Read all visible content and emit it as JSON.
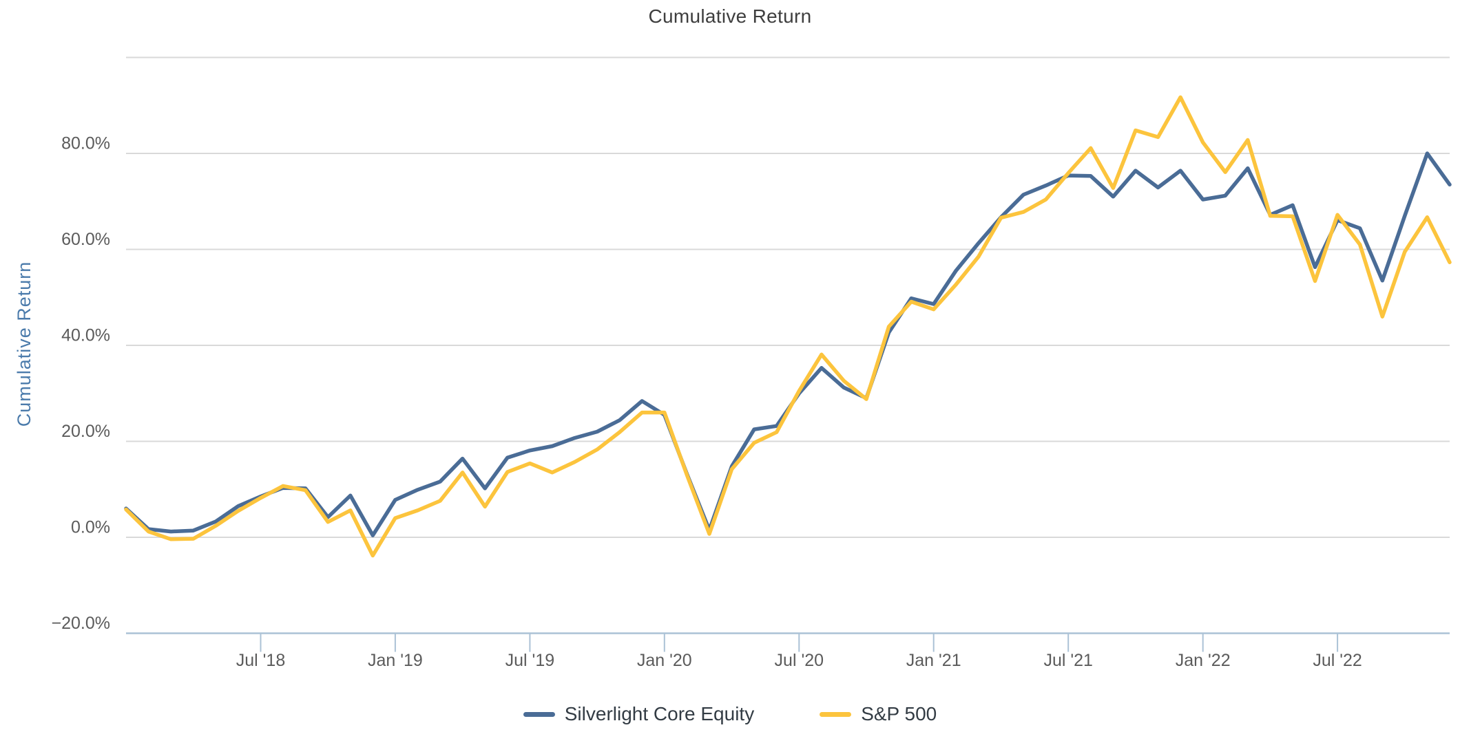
{
  "chart_data": {
    "type": "line",
    "title": "Cumulative Return",
    "ylabel": "Cumulative Return",
    "grid": true,
    "legend_position": "bottom",
    "x_months": [
      "2018-01",
      "2018-02",
      "2018-03",
      "2018-04",
      "2018-05",
      "2018-06",
      "2018-07",
      "2018-08",
      "2018-09",
      "2018-10",
      "2018-11",
      "2018-12",
      "2019-01",
      "2019-02",
      "2019-03",
      "2019-04",
      "2019-05",
      "2019-06",
      "2019-07",
      "2019-08",
      "2019-09",
      "2019-10",
      "2019-11",
      "2019-12",
      "2020-01",
      "2020-02",
      "2020-03",
      "2020-04",
      "2020-05",
      "2020-06",
      "2020-07",
      "2020-08",
      "2020-09",
      "2020-10",
      "2020-11",
      "2020-12",
      "2021-01",
      "2021-02",
      "2021-03",
      "2021-04",
      "2021-05",
      "2021-06",
      "2021-07",
      "2021-08",
      "2021-09",
      "2021-10",
      "2021-11",
      "2021-12",
      "2022-01",
      "2022-02",
      "2022-03",
      "2022-04",
      "2022-05",
      "2022-06",
      "2022-07",
      "2022-08",
      "2022-09",
      "2022-10",
      "2022-11",
      "2022-12"
    ],
    "x_axis": {
      "ticks": [
        {
          "index": 6,
          "label": "Jul '18"
        },
        {
          "index": 12,
          "label": "Jan '19"
        },
        {
          "index": 18,
          "label": "Jul '19"
        },
        {
          "index": 24,
          "label": "Jan '20"
        },
        {
          "index": 30,
          "label": "Jul '20"
        },
        {
          "index": 36,
          "label": "Jan '21"
        },
        {
          "index": 42,
          "label": "Jul '21"
        },
        {
          "index": 48,
          "label": "Jan '22"
        },
        {
          "index": 54,
          "label": "Jul '22"
        }
      ]
    },
    "y_axis": {
      "unit": "%",
      "ylim": [
        -20,
        100
      ],
      "gridline_values": [
        100,
        80,
        60,
        40,
        20,
        0
      ],
      "axis_value": -20,
      "tick_labels": [
        {
          "value": 80,
          "label": "80.0%"
        },
        {
          "value": 60,
          "label": "60.0%"
        },
        {
          "value": 40,
          "label": "40.0%"
        },
        {
          "value": 20,
          "label": "20.0%"
        },
        {
          "value": 0,
          "label": "0.0%"
        },
        {
          "value": -20,
          "label": "−20.0%"
        }
      ]
    },
    "series": [
      {
        "name": "Silverlight Core Equity",
        "color": "#4a6c96",
        "values": [
          6.0,
          1.7,
          1.2,
          1.4,
          3.3,
          6.5,
          8.5,
          10.3,
          10.2,
          4.2,
          8.7,
          0.4,
          7.8,
          9.9,
          11.6,
          16.4,
          10.2,
          16.6,
          18.1,
          19.0,
          20.7,
          22.0,
          24.4,
          28.4,
          25.5,
          13.2,
          1.5,
          14.8,
          22.5,
          23.2,
          30.0,
          35.3,
          31.2,
          29.0,
          42.7,
          49.8,
          48.6,
          55.6,
          61.3,
          66.7,
          71.4,
          73.3,
          75.4,
          75.3,
          71.0,
          76.4,
          72.9,
          76.4,
          70.4,
          71.2,
          76.9,
          67.2,
          69.2,
          56.3,
          66.1,
          64.4,
          53.5,
          67.0,
          80.0,
          73.5
        ]
      },
      {
        "name": "S&P 500",
        "color": "#fcc43d",
        "values": [
          5.8,
          1.2,
          -0.4,
          -0.3,
          2.4,
          5.5,
          8.2,
          10.7,
          9.8,
          3.2,
          5.6,
          -3.8,
          4.0,
          5.6,
          7.6,
          13.5,
          6.4,
          13.6,
          15.4,
          13.5,
          15.7,
          18.3,
          21.9,
          26.0,
          26.0,
          13.0,
          0.7,
          14.2,
          19.7,
          21.9,
          30.5,
          38.1,
          32.6,
          28.8,
          43.9,
          49.1,
          47.5,
          52.7,
          58.5,
          66.6,
          67.8,
          70.4,
          75.9,
          81.1,
          72.8,
          84.8,
          83.4,
          91.7,
          82.3,
          76.1,
          82.8,
          67.0,
          66.9,
          53.4,
          67.2,
          61.0,
          46.0,
          59.5,
          66.7,
          57.3
        ]
      }
    ],
    "colors": {
      "background": "#ffffff",
      "gridline": "#d9d9d9",
      "axis_line": "#abc2d6",
      "tick_label": "#5b5b5b",
      "title_text": "#3e3e3e",
      "y_axis_title_text": "#4b7bab",
      "legend_text": "#333c44"
    }
  }
}
